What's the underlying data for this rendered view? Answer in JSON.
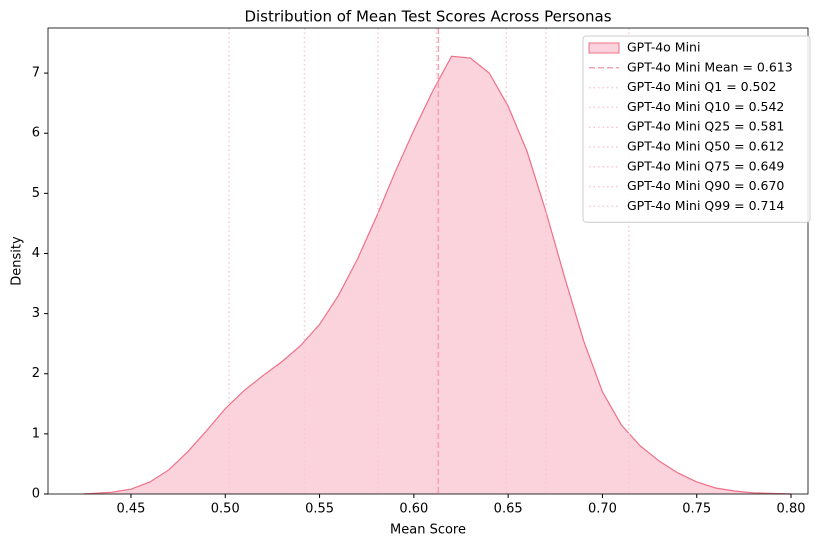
{
  "chart_data": {
    "type": "density",
    "title": "Distribution of Mean Test Scores Across Personas",
    "x_label": "Mean Score",
    "y_label": "Density",
    "xlim": [
      0.406,
      0.809
    ],
    "ylim": [
      0,
      7.75
    ],
    "xticks": [
      0.45,
      {
        "value": 0.5,
        "label": "0.50"
      },
      0.55,
      {
        "value": 0.6,
        "label": "0.60"
      },
      0.65,
      {
        "value": 0.7,
        "label": "0.70"
      },
      0.75,
      {
        "value": 0.8,
        "label": "0.80"
      }
    ],
    "yticks": [
      0,
      1,
      2,
      3,
      4,
      5,
      6,
      7
    ],
    "x": [
      0.425,
      0.44,
      0.45,
      0.46,
      0.47,
      0.48,
      0.49,
      0.5,
      0.51,
      0.52,
      0.53,
      0.54,
      0.55,
      0.56,
      0.57,
      0.58,
      0.59,
      0.6,
      0.61,
      0.62,
      0.63,
      0.64,
      0.65,
      0.66,
      0.67,
      0.68,
      0.69,
      0.7,
      0.71,
      0.72,
      0.73,
      0.74,
      0.75,
      0.76,
      0.77,
      0.78,
      0.8
    ],
    "series": [
      {
        "name": "GPT-4o Mini",
        "color": "#f07088",
        "fill": "#fad3dc",
        "values": [
          0.0,
          0.03,
          0.08,
          0.2,
          0.4,
          0.7,
          1.05,
          1.42,
          1.72,
          1.97,
          2.2,
          2.47,
          2.82,
          3.3,
          3.9,
          4.6,
          5.35,
          6.05,
          6.7,
          7.28,
          7.25,
          7.0,
          6.45,
          5.7,
          4.7,
          3.6,
          2.55,
          1.7,
          1.15,
          0.8,
          0.55,
          0.35,
          0.2,
          0.1,
          0.05,
          0.02,
          0.0
        ]
      }
    ],
    "vlines": [
      {
        "label": "GPT-4o Mini Mean = 0.613",
        "value": 0.613,
        "style": "dashed",
        "color": "#f4a3b5"
      },
      {
        "label": "GPT-4o Mini Q1 = 0.502",
        "value": 0.502,
        "style": "dotted",
        "color": "#f9c8d2"
      },
      {
        "label": "GPT-4o Mini Q10 = 0.542",
        "value": 0.542,
        "style": "dotted",
        "color": "#f9c8d2"
      },
      {
        "label": "GPT-4o Mini Q25 = 0.581",
        "value": 0.581,
        "style": "dotted",
        "color": "#f9c8d2"
      },
      {
        "label": "GPT-4o Mini Q50 = 0.612",
        "value": 0.612,
        "style": "dotted",
        "color": "#f9c8d2"
      },
      {
        "label": "GPT-4o Mini Q75 = 0.649",
        "value": 0.649,
        "style": "dotted",
        "color": "#f9c8d2"
      },
      {
        "label": "GPT-4o Mini Q90 = 0.670",
        "value": 0.67,
        "style": "dotted",
        "color": "#f9c8d2"
      },
      {
        "label": "GPT-4o Mini Q99 = 0.714",
        "value": 0.714,
        "style": "dotted",
        "color": "#f9c8d2"
      }
    ]
  }
}
